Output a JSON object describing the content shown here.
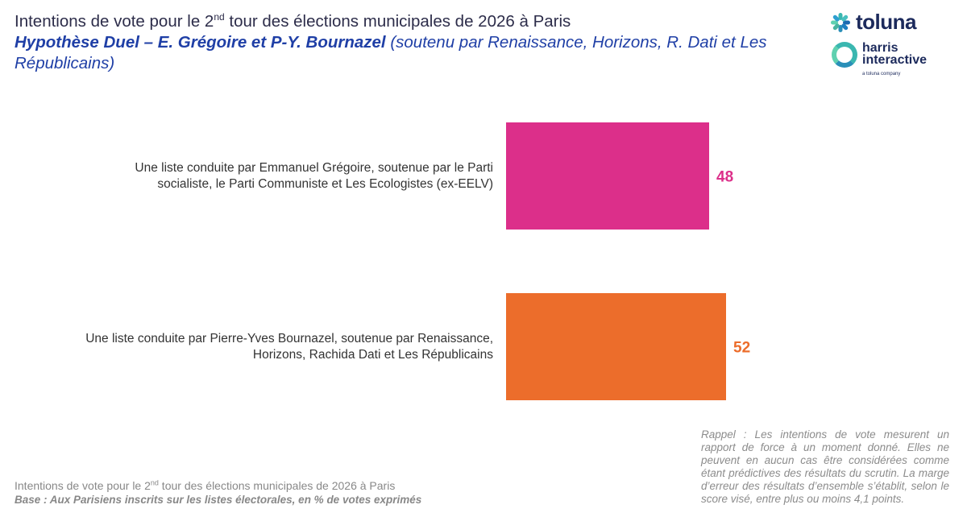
{
  "header": {
    "title_pre": "Intentions de vote pour le 2",
    "title_sup": "nd",
    "title_post": " tour des élections municipales de 2026 à Paris",
    "subtitle_bold": "Hypothèse Duel – E. Grégoire et P-Y. Bournazel",
    "subtitle_paren": " (soutenu par Renaissance, Horizons, R. Dati et Les Républicains)"
  },
  "logos": {
    "toluna": "toluna",
    "harris_line1": "harris",
    "harris_line2": "interactive",
    "harris_sub": "a toluna company"
  },
  "chart_data": {
    "type": "bar",
    "orientation": "horizontal",
    "categories": [
      "Une liste conduite par Emmanuel Grégoire, soutenue par le Parti socialiste, le Parti Communiste et Les Ecologistes (ex-EELV)",
      "Une liste conduite par Pierre-Yves Bournazel, soutenue par Renaissance, Horizons, Rachida Dati et Les Républicains"
    ],
    "category_lines": [
      [
        "Une liste conduite par Emmanuel Grégoire, soutenue par le Parti",
        "socialiste, le Parti Communiste et Les Ecologistes (ex-EELV)"
      ],
      [
        "Une liste conduite par Pierre-Yves Bournazel, soutenue par Renaissance,",
        "Horizons, Rachida Dati et Les Républicains"
      ]
    ],
    "values": [
      48,
      52
    ],
    "value_labels": [
      "48",
      "52"
    ],
    "colors": [
      "#dc2f8a",
      "#ec6d2b"
    ],
    "xlim": [
      0,
      100
    ]
  },
  "footer": {
    "line1_pre": "Intentions de vote pour le 2",
    "line1_sup": "nd",
    "line1_post": " tour des élections municipales de 2026 à Paris",
    "line2": "Base : Aux Parisiens inscrits sur les listes électorales, en % de votes exprimés"
  },
  "note": "Rappel : Les intentions de vote mesurent un rapport de force à un moment donné. Elles ne peuvent en aucun cas être considérées comme étant prédictives des résultats du scrutin. La marge d’erreur des résultats d’ensemble s’établit, selon le score visé, entre plus ou moins 4,1 points."
}
